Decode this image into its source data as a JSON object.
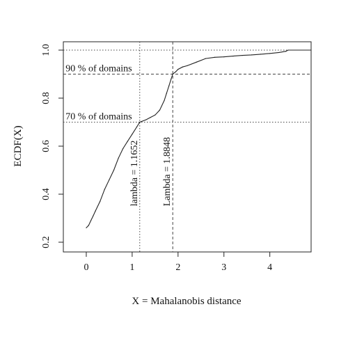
{
  "chart_data": {
    "type": "line",
    "title": "",
    "xlabel": "X = Mahalanobis distance",
    "ylabel": "ECDF(X)",
    "xlim": [
      -0.5,
      4.9
    ],
    "ylim": [
      0.2,
      1.0
    ],
    "xticks": [
      0,
      1,
      2,
      3,
      4
    ],
    "yticks": [
      0.2,
      0.4,
      0.6,
      0.8,
      1.0
    ],
    "xtick_labels": [
      "0",
      "1",
      "2",
      "3",
      "4"
    ],
    "ytick_labels": [
      "0.2",
      "0.4",
      "0.6",
      "0.8",
      "1.0"
    ],
    "grid": false,
    "legend": "none",
    "series": [
      {
        "x": [
          0.0,
          0.05,
          0.1,
          0.15,
          0.2,
          0.3,
          0.4,
          0.5,
          0.6,
          0.7,
          0.8,
          0.9,
          1.0,
          1.1,
          1.1652,
          1.3,
          1.4,
          1.5,
          1.6,
          1.7,
          1.75,
          1.8,
          1.85,
          1.8848,
          1.95,
          2.0,
          2.1,
          2.2,
          2.4,
          2.6,
          2.8,
          3.0,
          3.2,
          3.4,
          3.6,
          3.8,
          4.0,
          4.2,
          4.35,
          4.4,
          4.9
        ],
        "y": [
          0.26,
          0.27,
          0.29,
          0.31,
          0.33,
          0.37,
          0.42,
          0.46,
          0.5,
          0.55,
          0.59,
          0.62,
          0.65,
          0.68,
          0.7,
          0.71,
          0.72,
          0.73,
          0.75,
          0.79,
          0.82,
          0.85,
          0.88,
          0.9,
          0.91,
          0.92,
          0.93,
          0.935,
          0.95,
          0.965,
          0.97,
          0.972,
          0.975,
          0.978,
          0.98,
          0.983,
          0.986,
          0.99,
          0.995,
          1.0,
          1.0
        ]
      }
    ],
    "reference_lines": {
      "horizontal": [
        {
          "y": 1.0,
          "style": "dotted"
        },
        {
          "y": 0.9,
          "style": "dashed"
        },
        {
          "y": 0.7,
          "style": "dotted"
        }
      ],
      "vertical": [
        {
          "x": 1.1652,
          "style": "dotted"
        },
        {
          "x": 1.8848,
          "style": "dashed"
        }
      ]
    },
    "annotations": [
      {
        "text": "90 % of domains",
        "x": -0.45,
        "y": 0.9
      },
      {
        "text": "70 % of domains",
        "x": -0.45,
        "y": 0.7
      },
      {
        "text": "lambda = 1.1652",
        "x": 1.1652,
        "y": 0.35,
        "rotation": -90
      },
      {
        "text": "Lambda = 1.8848",
        "x": 1.8848,
        "y": 0.35,
        "rotation": -90
      }
    ]
  }
}
